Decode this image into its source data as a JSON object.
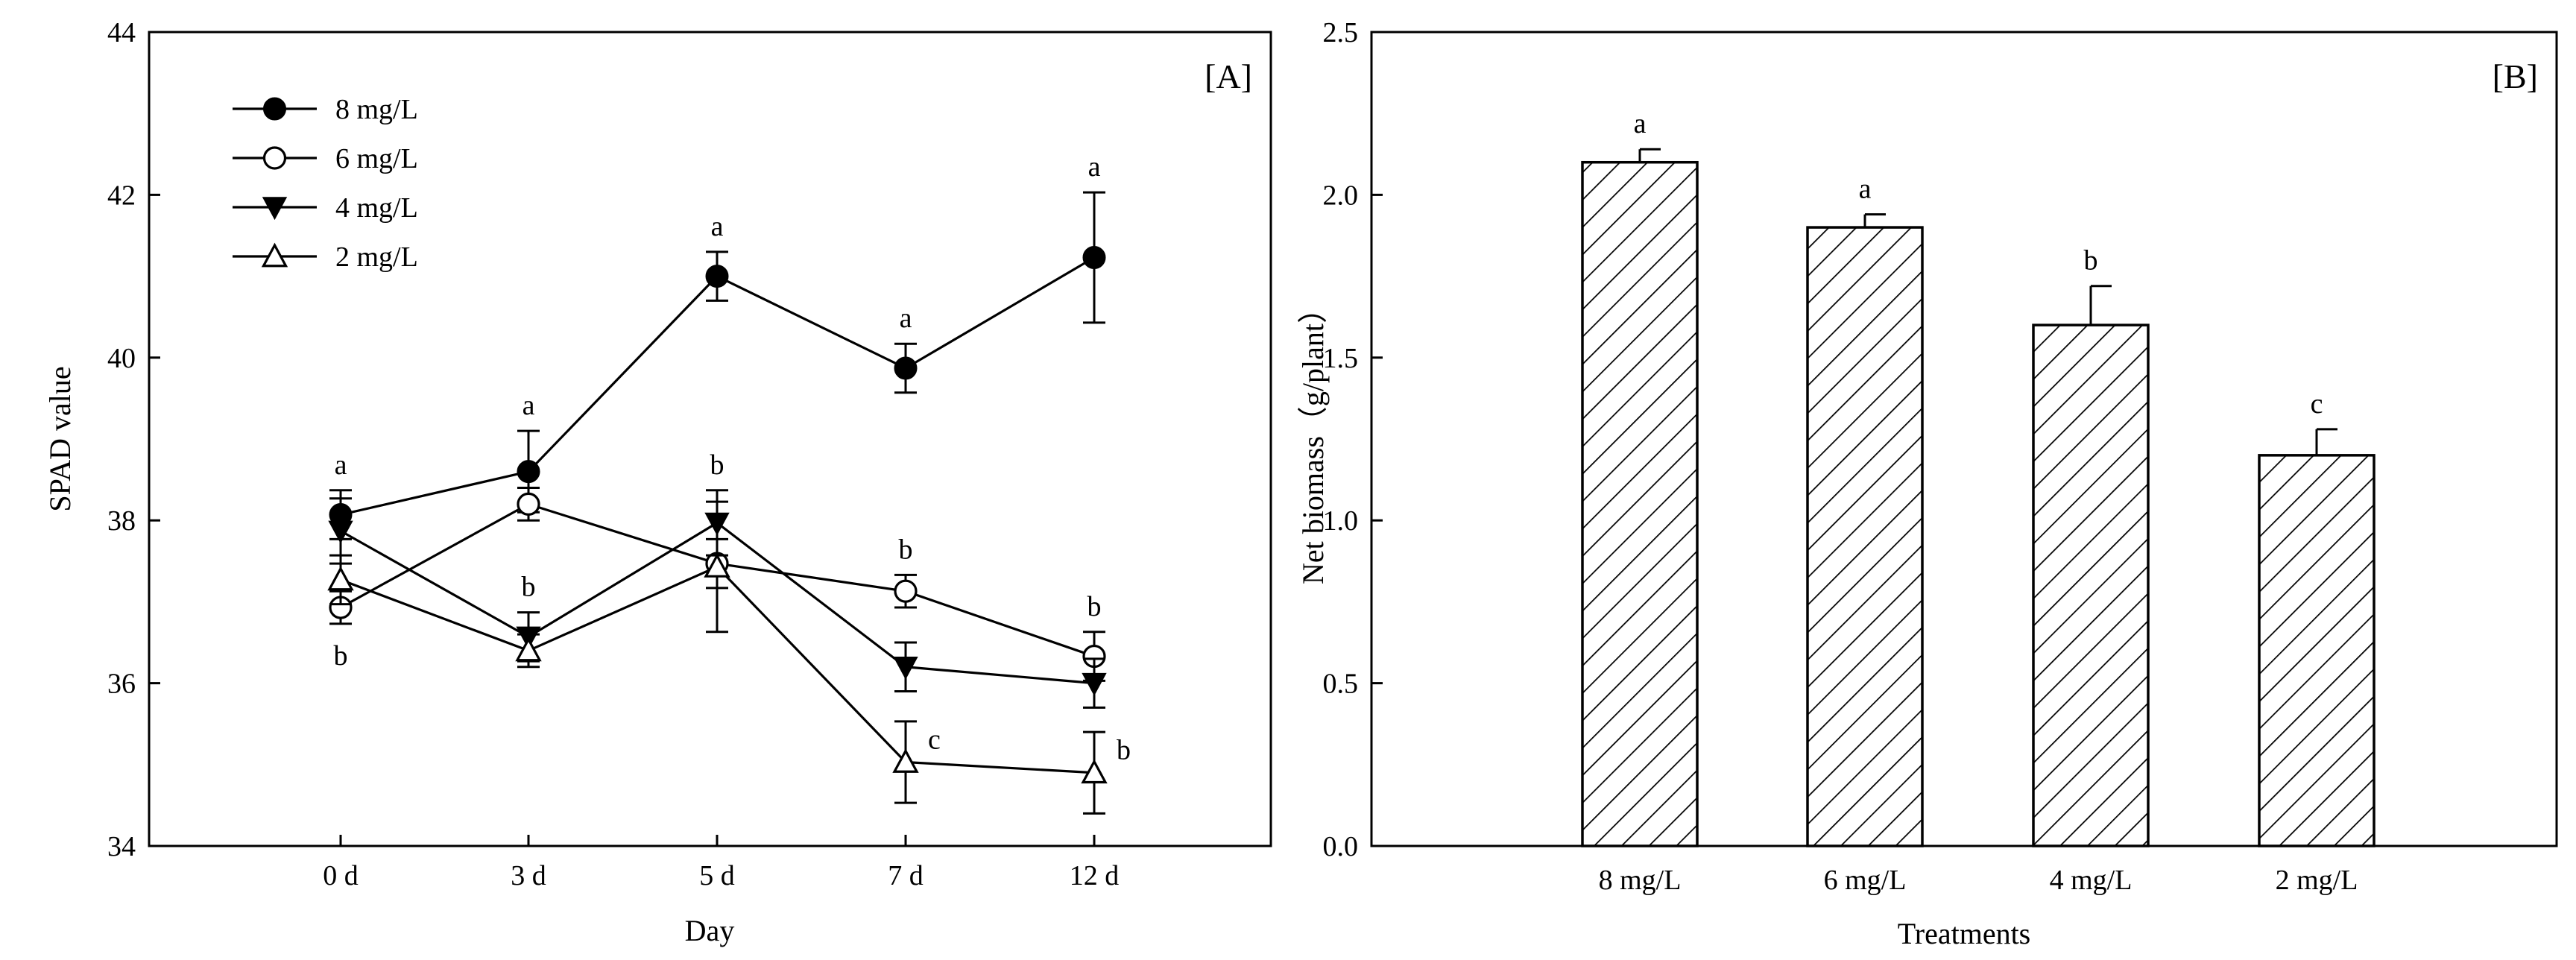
{
  "chart_data": [
    {
      "type": "line",
      "panel_label": "[A]",
      "xlabel": "Day",
      "ylabel": "SPAD value",
      "x": [
        "0 d",
        "3 d",
        "5 d",
        "7 d",
        "12 d"
      ],
      "ylim": [
        34,
        44
      ],
      "yticks": [
        34,
        36,
        38,
        40,
        42,
        44
      ],
      "legend_position": "top-left",
      "series": [
        {
          "name": "8 mg/L",
          "marker": "filled-circle",
          "values": [
            38.07,
            38.6,
            41.0,
            39.87,
            41.23
          ],
          "errors": [
            0.3,
            0.5,
            0.3,
            0.3,
            0.8
          ],
          "sig": [
            "a",
            "a",
            "a",
            "a",
            "a"
          ],
          "sig_side": [
            "above",
            "above",
            "above",
            "above",
            "above"
          ]
        },
        {
          "name": "6 mg/L",
          "marker": "open-circle",
          "values": [
            36.93,
            38.2,
            37.47,
            37.13,
            36.33
          ],
          "errors": [
            0.2,
            0.2,
            0.3,
            0.2,
            0.3
          ],
          "sig": [
            "b",
            "",
            "",
            "b",
            "b"
          ],
          "sig_side": [
            "below",
            "",
            "",
            "above",
            "above"
          ]
        },
        {
          "name": "4 mg/L",
          "marker": "filled-triangle-down",
          "values": [
            37.87,
            36.57,
            37.97,
            36.2,
            36.0
          ],
          "errors": [
            0.4,
            0.3,
            0.4,
            0.3,
            0.3
          ],
          "sig": [
            "",
            "b",
            "b",
            "",
            ""
          ],
          "sig_side": [
            "",
            "above",
            "above",
            "",
            ""
          ]
        },
        {
          "name": "2 mg/L",
          "marker": "open-triangle-up",
          "values": [
            37.27,
            36.4,
            37.43,
            35.03,
            34.9
          ],
          "errors": [
            0.3,
            0.2,
            0.8,
            0.5,
            0.5
          ],
          "sig": [
            "",
            "",
            "",
            "c",
            "b"
          ],
          "sig_side": [
            "",
            "",
            "",
            "right",
            "right"
          ]
        }
      ]
    },
    {
      "type": "bar",
      "panel_label": "[B]",
      "xlabel": "Treatments",
      "ylabel": "Net biomass（g/plant）",
      "categories": [
        "8 mg/L",
        "6 mg/L",
        "4 mg/L",
        "2 mg/L"
      ],
      "values": [
        2.1,
        1.9,
        1.6,
        1.2
      ],
      "errors": [
        0.04,
        0.04,
        0.12,
        0.08
      ],
      "sig": [
        "a",
        "a",
        "b",
        "c"
      ],
      "ylim": [
        0,
        2.5
      ],
      "yticks": [
        "0.0",
        "0.5",
        "1.0",
        "1.5",
        "2.0",
        "2.5"
      ],
      "pattern": "diagonal-hatch"
    }
  ]
}
